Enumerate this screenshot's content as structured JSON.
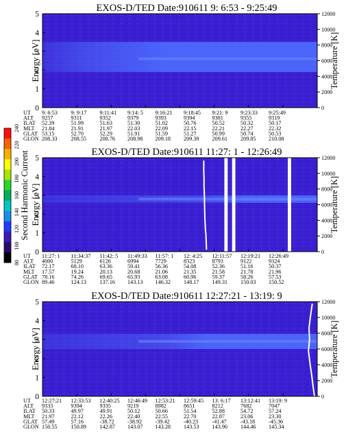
{
  "chart_data": [
    {
      "type": "heatmap",
      "title": "EXOS-D/TED   Date:910611   9: 6:53 - 9:25:49",
      "ylabel": "Energy [eV]",
      "ylabel_right": "Temperature [K]",
      "ylim": [
        0,
        5
      ],
      "ylim_right": [
        0,
        12000
      ],
      "yticks": [
        "0",
        "1",
        "2",
        "3",
        "4",
        "5"
      ],
      "yticks_right": [
        "0",
        "2000",
        "4000",
        "6000",
        "8000",
        "10000",
        "12000"
      ],
      "band_low_ev": 1.9,
      "band_high_ev": 3.5,
      "band_fade": [
        0.15,
        0.45
      ],
      "band_peak_ev": 2.6,
      "spikes": [],
      "trace": [],
      "ephemeris": {
        "labels": [
          "UT",
          "ALT",
          "ILAT",
          "MLT",
          "GLAT",
          "GLON"
        ],
        "columns": [
          [
            "9: 6:53",
            "9257",
            "52.39",
            "21.84",
            "53.15",
            "208.33"
          ],
          [
            "9: 9:17",
            "9311",
            "51.99",
            "21.91",
            "52.70",
            "208.55"
          ],
          [
            "9:11:41",
            "9352",
            "51.63",
            "21.97",
            "52.29",
            "208.76"
          ],
          [
            "9:14: 5",
            "9379",
            "51.30",
            "22.03",
            "51.91",
            "208.98"
          ],
          [
            "9:16:21",
            "9393",
            "51.02",
            "22.09",
            "51.59",
            "209.18"
          ],
          [
            "9:18:45",
            "9394",
            "50.76",
            "22.15",
            "51.27",
            "209.39"
          ],
          [
            "9:21: 9",
            "9381",
            "50.52",
            "22.21",
            "50.99",
            "209.61"
          ],
          [
            "9:23:33",
            "9355",
            "50.32",
            "22.27",
            "50.74",
            "209.85"
          ],
          [
            "9:25:49",
            "9319",
            "50.17",
            "22.32",
            "50.53",
            "210.08"
          ]
        ]
      }
    },
    {
      "type": "heatmap",
      "title": "EXOS-D/TED   Date:910611   11:27: 1 - 12:26:49",
      "ylabel": "Energy [eV]",
      "ylabel_right": "Temperature [K]",
      "ylim": [
        0,
        5
      ],
      "ylim_right": [
        0,
        12000
      ],
      "yticks": [
        "0",
        "1",
        "2",
        "3",
        "4",
        "5"
      ],
      "yticks_right": [
        "0",
        "2000",
        "4000",
        "6000",
        "8000",
        "10000",
        "12000"
      ],
      "band_low_ev": 2.6,
      "band_high_ev": 3.0,
      "band_fade": [
        0.6,
        0.75
      ],
      "band_peak_ev": 2.8,
      "spikes": [
        {
          "x": 0.662,
          "width": 0.012
        },
        {
          "x": 0.69,
          "width": 0.012
        },
        {
          "x": 0.893,
          "width": 0.012
        }
      ],
      "trace": [
        {
          "x": 0.587,
          "y": 4.85
        },
        {
          "x": 0.587,
          "y": 4.3
        },
        {
          "x": 0.588,
          "y": 3.9
        },
        {
          "x": 0.588,
          "y": 3.5
        },
        {
          "x": 0.589,
          "y": 3.1
        },
        {
          "x": 0.59,
          "y": 2.4
        },
        {
          "x": 0.591,
          "y": 1.8
        },
        {
          "x": 0.593,
          "y": 1.2
        },
        {
          "x": 0.595,
          "y": 0.9
        },
        {
          "x": 0.597,
          "y": 0.1
        }
      ],
      "ephemeris": {
        "labels": [
          "UT",
          "ALT",
          "ILAT",
          "MLT",
          "GLAT",
          "GLON"
        ],
        "columns": [
          [
            "11:27: 1",
            "4000",
            "72.17",
            "17.57",
            "78.16",
            "89.46"
          ],
          [
            "11:34:37",
            "5129",
            "68.10",
            "19.24",
            "74.26",
            "124.13"
          ],
          [
            "11:42: 5",
            "6126",
            "63.36",
            "20.13",
            "69.65",
            "137.16"
          ],
          [
            "11:49:33",
            "6994",
            "59.41",
            "20.68",
            "65.93",
            "143.13"
          ],
          [
            "11:57: 1",
            "7729",
            "56.36",
            "21.06",
            "63.08",
            "146.32"
          ],
          [
            "12: 4:25",
            "8323",
            "54.08",
            "21.35",
            "60.96",
            "148.17"
          ],
          [
            "12:11:57",
            "8793",
            "52.36",
            "21.58",
            "59.37",
            "149.31"
          ],
          [
            "12:19:21",
            "9122",
            "51.16",
            "21.78",
            "58.26",
            "150.03"
          ],
          [
            "12:26:49",
            "9324",
            "50.37",
            "21.96",
            "57.53",
            "150.52"
          ]
        ]
      }
    },
    {
      "type": "heatmap",
      "title": "EXOS-D/TED   Date:910611   12:27:21 - 13:19: 9",
      "ylabel": "Energy [eV]",
      "ylabel_right": "Temperature [K]",
      "ylim": [
        0,
        5
      ],
      "ylim_right": [
        0,
        12000
      ],
      "yticks": [
        "0",
        "1",
        "2",
        "3",
        "4",
        "5"
      ],
      "yticks_right": [
        "0",
        "2000",
        "4000",
        "6000",
        "8000",
        "10000",
        "12000"
      ],
      "band_low_ev": 2.5,
      "band_high_ev": 3.3,
      "band_fade": [
        0.45,
        0.6
      ],
      "band_peak_ev": 2.9,
      "spikes": [],
      "trace": [
        {
          "x": 0.982,
          "y": 4.9
        },
        {
          "x": 0.975,
          "y": 4.2
        },
        {
          "x": 0.97,
          "y": 3.6
        },
        {
          "x": 0.972,
          "y": 3.0
        },
        {
          "x": 0.968,
          "y": 2.4
        },
        {
          "x": 0.974,
          "y": 1.7
        },
        {
          "x": 0.98,
          "y": 1.1
        },
        {
          "x": 0.986,
          "y": 0.4
        },
        {
          "x": 0.99,
          "y": 0.0
        }
      ],
      "ephemeris": {
        "labels": [
          "UT",
          "ALT",
          "ILAT",
          "MLT",
          "GLAT",
          "GLON"
        ],
        "columns": [
          [
            "12:27:21",
            "9333",
            "50.33",
            "21.97",
            "57.49",
            "150.55"
          ],
          [
            "12:33:53",
            "9394",
            "49.97",
            "22.12",
            "57.16",
            "150.89"
          ],
          [
            "12:40:25",
            "9335",
            "49.91",
            "22.26",
            "-38.72",
            "142.87"
          ],
          [
            "12:46:49",
            "9219",
            "50.12",
            "22.40",
            "-38.92",
            "143.07"
          ],
          [
            "12:53:21",
            "8982",
            "50.66",
            "22.55",
            "-39.42",
            "143.28"
          ],
          [
            "12:59:45",
            "8651",
            "51.54",
            "22.70",
            "-40.23",
            "143.53"
          ],
          [
            "13: 6:17",
            "8212",
            "52.88",
            "22.87",
            "-41.47",
            "143.90"
          ],
          [
            "13:12:41",
            "7682",
            "54.72",
            "23.06",
            "-43.18",
            "144.46"
          ],
          [
            "13:19: 9",
            "7047",
            "57.24",
            "23.30",
            "-45.36",
            "145.34"
          ]
        ]
      }
    }
  ],
  "colorbar": {
    "label": "Second Harmonic Current",
    "ticks": [
      "80",
      "100",
      "120",
      "140",
      "160",
      "180",
      "200",
      "220",
      "240"
    ],
    "colors": [
      "#000000",
      "#2b0a6e",
      "#3a1ab8",
      "#1f3cff",
      "#1690e8",
      "#00c8c8",
      "#00b060",
      "#28d828",
      "#a8e800",
      "#ffff00",
      "#ffb000",
      "#ff6000",
      "#ff1010"
    ]
  },
  "colors": {
    "background": "#3a20d2",
    "band": "#4d6cff"
  }
}
